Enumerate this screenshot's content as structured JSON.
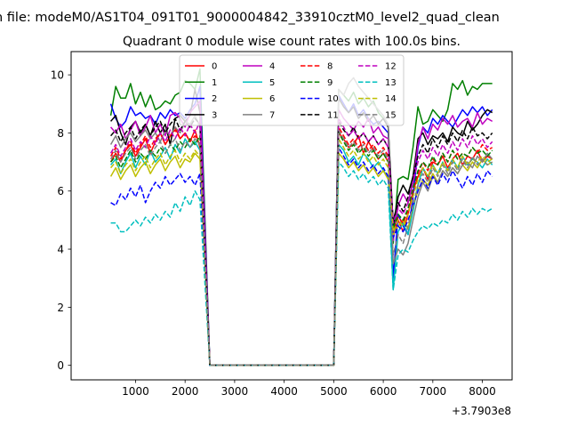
{
  "chart_data": {
    "type": "line",
    "suptitle": "n file: modeM0/AS1T04_091T01_9000004842_33910cztM0_level2_quad_clean",
    "title": "Quadrant 0 module wise count rates with 100.0s bins.",
    "xlabel": "",
    "ylabel": "",
    "x_offset_label": "+3.7903e8",
    "xlim": [
      -300,
      8600
    ],
    "ylim": [
      -0.5,
      10.8
    ],
    "xticks": [
      1000,
      2000,
      3000,
      4000,
      5000,
      6000,
      7000,
      8000
    ],
    "xtick_labels": [
      "1000",
      "2000",
      "3000",
      "4000",
      "5000",
      "6000",
      "7000",
      "8000"
    ],
    "yticks": [
      0,
      2,
      4,
      6,
      8,
      10
    ],
    "ytick_labels": [
      "0",
      "2",
      "4",
      "6",
      "8",
      "10"
    ],
    "legend_location": "upper center",
    "legend_columns": 4,
    "x_segment1_start": 500,
    "x_segment1_step": 100,
    "zero_range": [
      2500,
      5000
    ],
    "x_segment2_start": 5100,
    "x_segment2_step": 100,
    "series": [
      {
        "name": "0",
        "color": "#ff0000",
        "dash": "solid",
        "seg1_values": [
          7.0,
          7.3,
          7.0,
          7.4,
          7.6,
          7.2,
          7.5,
          7.8,
          7.3,
          7.7,
          8.0,
          7.6,
          7.9,
          8.2,
          7.8,
          8.0,
          7.7,
          8.1,
          7.5
        ],
        "seg2_values": [
          8.0,
          7.8,
          7.5,
          7.6,
          7.9,
          7.3,
          7.7,
          7.4,
          7.1,
          7.3,
          7.0,
          4.5,
          5.0,
          4.6,
          5.2,
          6.0,
          6.5,
          6.8,
          6.4,
          7.0,
          6.9,
          7.2,
          6.8,
          7.1,
          7.3,
          6.9,
          7.2,
          7.1,
          7.4,
          7.0,
          7.2,
          7.1
        ]
      },
      {
        "name": "1",
        "color": "#008000",
        "dash": "solid",
        "seg1_values": [
          8.6,
          9.6,
          9.2,
          9.2,
          9.7,
          9.0,
          9.4,
          8.9,
          9.3,
          8.8,
          8.9,
          9.1,
          9.0,
          9.3,
          9.4,
          9.8,
          9.7,
          9.5,
          10.2
        ],
        "seg2_values": [
          9.5,
          9.3,
          9.1,
          9.4,
          9.0,
          9.2,
          8.9,
          9.1,
          8.7,
          8.5,
          8.2,
          4.2,
          6.4,
          6.5,
          6.4,
          7.5,
          8.9,
          8.3,
          8.4,
          8.8,
          8.6,
          8.4,
          8.8,
          9.7,
          9.5,
          9.8,
          9.3,
          9.6,
          9.5,
          9.7,
          9.7,
          9.7
        ]
      },
      {
        "name": "2",
        "color": "#0000ff",
        "dash": "solid",
        "seg1_values": [
          9.0,
          8.5,
          8.2,
          8.4,
          8.9,
          8.6,
          8.7,
          8.5,
          8.6,
          8.3,
          8.7,
          8.5,
          8.8,
          8.6,
          8.7,
          8.5,
          8.8,
          9.0,
          9.6
        ],
        "seg2_values": [
          9.3,
          9.0,
          8.7,
          9.0,
          8.6,
          8.8,
          8.5,
          8.3,
          8.4,
          8.2,
          8.0,
          3.0,
          5.2,
          4.8,
          4.5,
          5.8,
          7.5,
          8.2,
          8.0,
          8.5,
          8.3,
          8.6,
          8.4,
          8.2,
          8.5,
          8.8,
          8.6,
          8.9,
          8.7,
          8.9,
          8.6,
          8.8
        ]
      },
      {
        "name": "3",
        "color": "#000000",
        "dash": "solid",
        "seg1_values": [
          8.4,
          8.6,
          8.0,
          7.6,
          8.2,
          8.4,
          8.0,
          8.3,
          7.9,
          8.4,
          8.0,
          8.3,
          7.6,
          8.5,
          8.6,
          8.4,
          8.6,
          9.5,
          8.7
        ],
        "seg2_values": [
          9.2,
          8.9,
          8.7,
          8.9,
          8.5,
          8.7,
          8.4,
          8.6,
          8.3,
          8.5,
          8.2,
          4.8,
          5.8,
          6.2,
          5.9,
          6.5,
          7.8,
          8.0,
          7.6,
          7.9,
          7.8,
          8.0,
          7.7,
          8.2,
          8.0,
          7.9,
          8.4,
          8.1,
          8.3,
          8.6,
          8.8,
          8.7
        ]
      },
      {
        "name": "4",
        "color": "#bf00bf",
        "dash": "solid",
        "seg1_values": [
          8.2,
          8.0,
          8.3,
          7.8,
          8.1,
          8.4,
          7.9,
          8.2,
          8.6,
          8.0,
          8.3,
          7.9,
          8.6,
          8.7,
          8.5,
          8.2,
          8.7,
          8.9,
          9.1
        ],
        "seg2_values": [
          8.8,
          8.5,
          8.3,
          8.1,
          8.4,
          8.2,
          8.5,
          8.0,
          8.2,
          7.9,
          7.8,
          4.3,
          5.5,
          5.9,
          5.6,
          6.3,
          7.6,
          8.2,
          7.8,
          8.3,
          8.1,
          8.5,
          8.3,
          8.6,
          8.2,
          8.4,
          8.5,
          8.2,
          8.7,
          8.3,
          8.5,
          8.4
        ]
      },
      {
        "name": "5",
        "color": "#00bfbf",
        "dash": "solid",
        "seg1_values": [
          6.9,
          7.1,
          6.6,
          7.0,
          7.3,
          6.8,
          7.2,
          6.9,
          7.4,
          7.0,
          7.2,
          7.5,
          7.1,
          7.6,
          7.3,
          7.8,
          7.5,
          7.7,
          7.4
        ],
        "seg2_values": [
          7.6,
          7.4,
          7.0,
          7.2,
          6.9,
          7.3,
          7.1,
          6.8,
          7.0,
          6.7,
          6.5,
          2.6,
          4.6,
          4.9,
          4.5,
          5.3,
          6.2,
          6.8,
          6.5,
          6.9,
          6.6,
          7.0,
          6.7,
          7.1,
          6.8,
          7.2,
          6.9,
          7.1,
          7.0,
          6.8,
          7.1,
          6.9
        ]
      },
      {
        "name": "6",
        "color": "#bfbf00",
        "dash": "solid",
        "seg1_values": [
          6.5,
          6.8,
          6.4,
          6.7,
          6.9,
          6.5,
          6.8,
          7.0,
          6.6,
          6.9,
          7.1,
          6.7,
          7.0,
          7.2,
          6.8,
          7.1,
          7.0,
          7.3,
          7.1
        ],
        "seg2_values": [
          7.3,
          7.1,
          6.8,
          7.0,
          6.7,
          6.9,
          6.6,
          6.8,
          6.5,
          6.7,
          6.4,
          4.5,
          4.8,
          5.0,
          4.7,
          5.5,
          6.0,
          6.4,
          6.2,
          6.6,
          6.3,
          6.7,
          6.5,
          6.8,
          6.6,
          6.9,
          6.7,
          7.0,
          6.8,
          7.1,
          6.9,
          7.0
        ]
      },
      {
        "name": "7",
        "color": "#808080",
        "dash": "solid",
        "seg1_values": [
          7.6,
          7.9,
          7.5,
          7.8,
          8.0,
          7.7,
          7.9,
          8.1,
          7.8,
          8.0,
          7.7,
          8.1,
          7.9,
          8.2,
          8.0,
          8.4,
          8.3,
          8.6,
          8.2
        ],
        "seg2_values": [
          9.5,
          9.3,
          9.7,
          9.9,
          9.6,
          9.4,
          9.2,
          9.0,
          8.8,
          8.6,
          8.3,
          3.5,
          4.0,
          3.8,
          4.2,
          5.0,
          5.8,
          6.3,
          6.0,
          6.5,
          6.3,
          6.7,
          6.5,
          6.8,
          6.6,
          6.9,
          7.0,
          6.8,
          7.2,
          7.0,
          7.3,
          7.1
        ]
      },
      {
        "name": "8",
        "color": "#ff0000",
        "dash": "dashed",
        "seg1_values": [
          7.2,
          7.5,
          7.1,
          7.4,
          7.7,
          7.3,
          7.6,
          7.9,
          7.5,
          7.8,
          8.0,
          7.6,
          7.9,
          8.1,
          7.8,
          8.0,
          7.7,
          7.9,
          7.6
        ],
        "seg2_values": [
          8.2,
          7.9,
          7.6,
          7.8,
          7.5,
          7.7,
          7.4,
          7.6,
          7.3,
          7.5,
          7.2,
          4.6,
          5.1,
          4.9,
          5.3,
          6.0,
          6.6,
          7.0,
          6.7,
          7.1,
          6.9,
          7.3,
          7.0,
          7.4,
          7.1,
          7.3,
          7.2,
          7.5,
          7.3,
          7.6,
          7.4,
          7.5
        ]
      },
      {
        "name": "9",
        "color": "#008000",
        "dash": "dashed",
        "seg1_values": [
          7.0,
          7.2,
          6.8,
          7.1,
          7.4,
          7.0,
          7.3,
          7.1,
          7.4,
          7.2,
          7.5,
          7.3,
          7.6,
          7.4,
          7.7,
          7.5,
          7.8,
          7.6,
          7.9
        ],
        "seg2_values": [
          8.0,
          7.7,
          7.4,
          7.6,
          7.3,
          7.5,
          7.2,
          7.4,
          7.1,
          7.3,
          7.0,
          4.7,
          5.2,
          5.0,
          5.4,
          6.1,
          6.7,
          7.0,
          6.8,
          7.2,
          6.9,
          7.3,
          7.0,
          7.4,
          7.1,
          7.3,
          7.2,
          7.5,
          7.3,
          7.4,
          7.2,
          7.4
        ]
      },
      {
        "name": "10",
        "color": "#0000ff",
        "dash": "dashed",
        "seg1_values": [
          5.6,
          5.5,
          5.9,
          5.7,
          6.1,
          5.8,
          6.2,
          5.6,
          6.0,
          6.3,
          6.1,
          6.5,
          6.2,
          6.4,
          6.6,
          6.3,
          6.5,
          6.2,
          6.6
        ],
        "seg2_values": [
          7.5,
          7.2,
          6.9,
          7.1,
          6.8,
          7.0,
          6.7,
          6.9,
          6.6,
          6.8,
          6.5,
          4.4,
          4.8,
          4.6,
          5.0,
          5.5,
          6.0,
          6.4,
          6.1,
          6.5,
          6.2,
          6.6,
          6.3,
          6.7,
          6.4,
          6.1,
          6.5,
          6.2,
          6.6,
          6.3,
          6.7,
          6.5
        ]
      },
      {
        "name": "11",
        "color": "#000000",
        "dash": "dashed",
        "seg1_values": [
          7.9,
          8.1,
          7.7,
          8.0,
          8.2,
          7.8,
          8.1,
          8.3,
          7.9,
          8.2,
          8.4,
          8.0,
          8.3,
          8.5,
          8.1,
          8.4,
          8.2,
          8.5,
          8.3
        ],
        "seg2_values": [
          8.4,
          8.1,
          7.9,
          8.2,
          7.8,
          8.0,
          7.7,
          7.9,
          7.6,
          7.8,
          7.5,
          5.0,
          5.6,
          5.3,
          5.8,
          6.5,
          7.2,
          7.6,
          7.3,
          7.8,
          7.5,
          7.9,
          7.6,
          8.0,
          7.7,
          8.1,
          7.8,
          8.2,
          7.9,
          8.0,
          7.8,
          8.0
        ]
      },
      {
        "name": "12",
        "color": "#bf00bf",
        "dash": "dashed",
        "seg1_values": [
          7.3,
          7.6,
          7.2,
          7.5,
          7.8,
          7.4,
          7.7,
          7.5,
          7.9,
          7.6,
          8.0,
          7.7,
          8.1,
          7.8,
          8.2,
          7.9,
          8.3,
          8.0,
          8.4
        ],
        "seg2_values": [
          8.5,
          8.2,
          7.9,
          8.1,
          7.8,
          8.0,
          7.7,
          7.9,
          7.6,
          7.8,
          7.5,
          4.9,
          5.4,
          5.2,
          5.6,
          6.3,
          7.0,
          7.4,
          7.1,
          7.5,
          7.2,
          7.6,
          7.3,
          7.7,
          7.4,
          7.8,
          7.5,
          7.9,
          7.6,
          7.8,
          7.5,
          7.7
        ]
      },
      {
        "name": "13",
        "color": "#00bfbf",
        "dash": "dashed",
        "seg1_values": [
          4.9,
          4.9,
          4.6,
          4.6,
          4.8,
          5.0,
          4.8,
          5.1,
          4.9,
          5.2,
          5.0,
          5.3,
          5.1,
          5.6,
          5.3,
          5.8,
          5.5,
          6.0,
          5.7
        ],
        "seg2_values": [
          7.0,
          6.8,
          6.5,
          6.7,
          6.4,
          6.6,
          6.3,
          6.5,
          6.2,
          6.4,
          6.1,
          2.6,
          3.8,
          4.0,
          3.9,
          4.3,
          4.6,
          4.8,
          4.7,
          4.9,
          4.8,
          5.0,
          4.9,
          5.2,
          5.0,
          5.3,
          5.1,
          5.4,
          5.2,
          5.4,
          5.3,
          5.4
        ]
      },
      {
        "name": "14",
        "color": "#bfbf00",
        "dash": "dashed",
        "seg1_values": [
          6.8,
          7.0,
          6.6,
          6.9,
          7.1,
          6.7,
          7.0,
          7.2,
          6.8,
          7.1,
          7.3,
          6.9,
          7.2,
          7.4,
          7.0,
          7.3,
          7.1,
          7.4,
          7.2
        ],
        "seg2_values": [
          7.8,
          7.5,
          7.2,
          7.4,
          7.1,
          7.3,
          7.0,
          7.2,
          6.9,
          7.1,
          6.8,
          4.6,
          5.0,
          4.8,
          5.2,
          5.8,
          6.4,
          6.8,
          6.5,
          6.9,
          6.6,
          7.0,
          6.7,
          7.1,
          6.8,
          7.2,
          6.9,
          7.1,
          7.0,
          7.2,
          7.0,
          7.1
        ]
      },
      {
        "name": "15",
        "color": "#808080",
        "dash": "dashed",
        "seg1_values": [
          7.1,
          7.4,
          7.0,
          7.3,
          7.5,
          7.1,
          7.4,
          7.6,
          7.2,
          7.5,
          7.7,
          7.3,
          7.6,
          7.8,
          7.4,
          7.7,
          7.5,
          7.8,
          7.6
        ],
        "seg2_values": [
          8.1,
          7.8,
          7.5,
          7.7,
          7.4,
          7.6,
          7.3,
          7.5,
          7.2,
          7.4,
          7.1,
          3.8,
          4.5,
          4.2,
          4.8,
          5.5,
          6.2,
          6.6,
          6.3,
          6.8,
          6.5,
          6.9,
          6.6,
          7.0,
          6.7,
          7.1,
          6.8,
          7.2,
          6.9,
          7.1,
          6.9,
          7.0
        ]
      }
    ]
  }
}
